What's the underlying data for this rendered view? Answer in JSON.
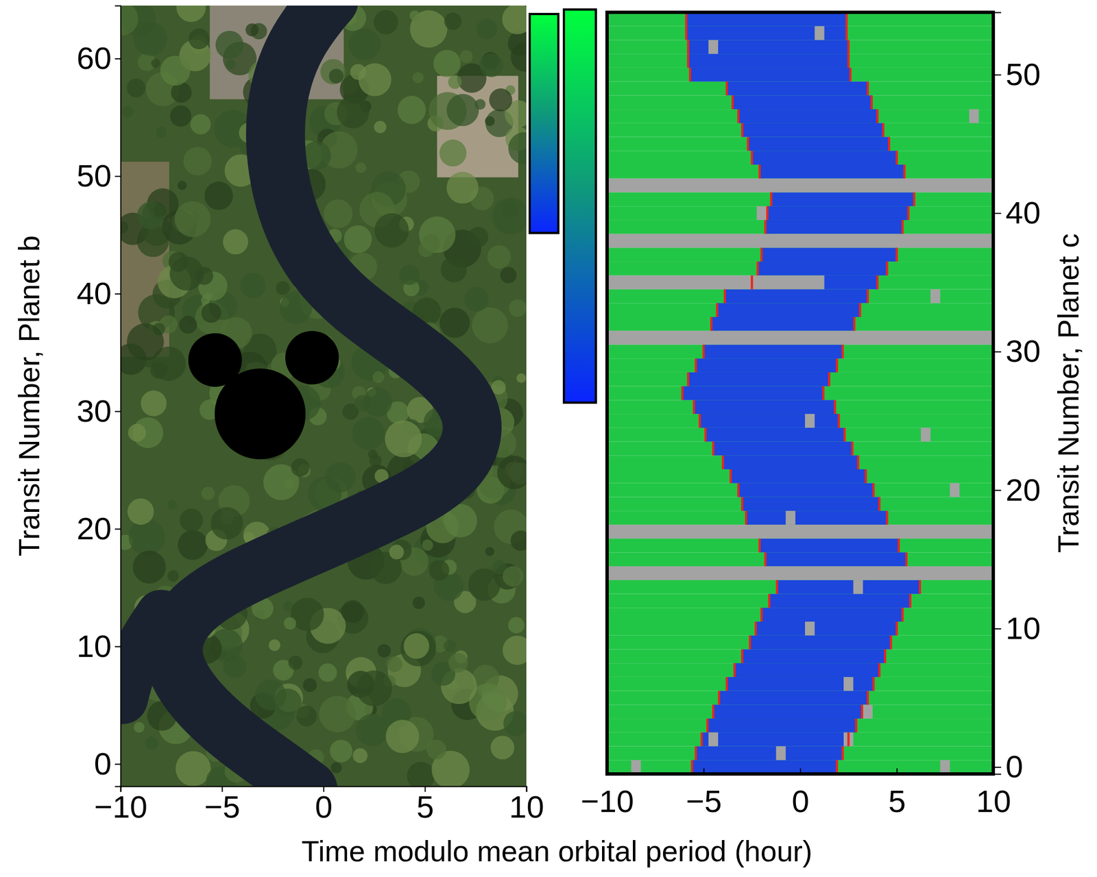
{
  "chart_data": [
    {
      "type": "image",
      "ylabel": "Transit Number, Planet b",
      "xlim": [
        -10,
        10
      ],
      "xticks": [
        {
          "value": -10,
          "label": "−10"
        },
        {
          "value": -5,
          "label": "−5"
        },
        0,
        5,
        10
      ],
      "ylim": [
        -1.9,
        64.5
      ],
      "yticks": [
        0,
        10,
        20,
        30,
        40,
        50,
        60
      ]
    },
    {
      "type": "heatmap",
      "xlabel": "Time modulo mean orbital period (hour)",
      "ylabel": "Transit Number, Planet c",
      "xlim": [
        -10,
        10
      ],
      "xticks": [
        {
          "value": -10,
          "label": "−10"
        },
        {
          "value": -5,
          "label": "−5"
        },
        0,
        5,
        10
      ],
      "ylim": [
        -0.5,
        54.5
      ],
      "yticks": [
        0,
        10,
        20,
        30,
        40,
        50
      ],
      "y": [
        0,
        1,
        2,
        3,
        4,
        5,
        6,
        7,
        8,
        9,
        10,
        11,
        12,
        13,
        14,
        15,
        16,
        17,
        18,
        19,
        20,
        21,
        22,
        23,
        24,
        25,
        26,
        27,
        28,
        29,
        30,
        31,
        32,
        33,
        34,
        35,
        36,
        37,
        38,
        39,
        40,
        41,
        42,
        43,
        44,
        45,
        46,
        47,
        48,
        49,
        50,
        51,
        52,
        53,
        54
      ],
      "ingress": [
        -5.6,
        -5.4,
        -5.1,
        -4.8,
        -4.5,
        -4.2,
        -3.8,
        -3.4,
        -3.0,
        -2.6,
        -2.3,
        -2.0,
        -1.6,
        -1.2,
        null,
        -1.8,
        -2.1,
        null,
        -2.8,
        -3.0,
        -3.2,
        -3.6,
        -4.0,
        -4.5,
        -4.9,
        -5.2,
        -5.5,
        -6.1,
        -5.8,
        -5.4,
        -5.0,
        null,
        -4.6,
        -4.3,
        -3.9,
        -2.5,
        -2.2,
        -2.0,
        null,
        -1.8,
        -1.7,
        -1.5,
        null,
        -2.1,
        -2.5,
        -2.7,
        -3.0,
        -3.2,
        -3.5,
        -3.8,
        -5.7,
        -5.8,
        -5.8,
        -5.9,
        -5.9
      ],
      "egress": [
        1.9,
        2.2,
        2.5,
        2.9,
        3.2,
        3.5,
        3.8,
        4.1,
        4.4,
        4.7,
        5.0,
        5.3,
        5.7,
        6.2,
        null,
        5.5,
        5.1,
        null,
        4.5,
        4.1,
        3.8,
        3.4,
        3.0,
        2.7,
        2.3,
        2.0,
        1.8,
        1.2,
        1.5,
        1.9,
        2.2,
        null,
        2.8,
        3.1,
        3.5,
        4.0,
        4.5,
        5.0,
        null,
        5.3,
        5.6,
        5.9,
        null,
        5.4,
        5.0,
        4.6,
        4.3,
        4.0,
        3.7,
        3.5,
        2.6,
        2.5,
        2.5,
        2.4,
        2.4
      ],
      "missing": [
        {
          "row": 53,
          "x0": 0.75,
          "x1": 1.25
        },
        {
          "row": 52,
          "x0": -4.75,
          "x1": -4.25
        },
        {
          "row": 47,
          "x0": 8.75,
          "x1": 9.25
        },
        {
          "row": 42,
          "x0": -10,
          "x1": 10
        },
        {
          "row": 40,
          "x0": -2.25,
          "x1": -1.75
        },
        {
          "row": 38,
          "x0": -10,
          "x1": 10
        },
        {
          "row": 35,
          "x0": -10,
          "x1": 1.25
        },
        {
          "row": 34,
          "x0": 6.75,
          "x1": 7.25
        },
        {
          "row": 31,
          "x0": -10,
          "x1": 10
        },
        {
          "row": 25,
          "x0": 0.25,
          "x1": 0.75
        },
        {
          "row": 24,
          "x0": 6.25,
          "x1": 6.75
        },
        {
          "row": 20,
          "x0": 7.75,
          "x1": 8.25
        },
        {
          "row": 18,
          "x0": -0.75,
          "x1": -0.25
        },
        {
          "row": 17,
          "x0": -10,
          "x1": 10
        },
        {
          "row": 14,
          "x0": -10,
          "x1": 10
        },
        {
          "row": 13,
          "x0": 2.75,
          "x1": 3.25
        },
        {
          "row": 10,
          "x0": 0.25,
          "x1": 0.75
        },
        {
          "row": 6,
          "x0": 2.25,
          "x1": 2.75
        },
        {
          "row": 4,
          "x0": 3.25,
          "x1": 3.75
        },
        {
          "row": 2,
          "x0": -4.75,
          "x1": -4.25
        },
        {
          "row": 2,
          "x0": 2.25,
          "x1": 2.75
        },
        {
          "row": 1,
          "x0": -1.25,
          "x1": -0.75
        },
        {
          "row": 0,
          "x0": -8.75,
          "x1": -8.25
        },
        {
          "row": 0,
          "x0": 7.25,
          "x1": 7.75
        }
      ]
    }
  ]
}
